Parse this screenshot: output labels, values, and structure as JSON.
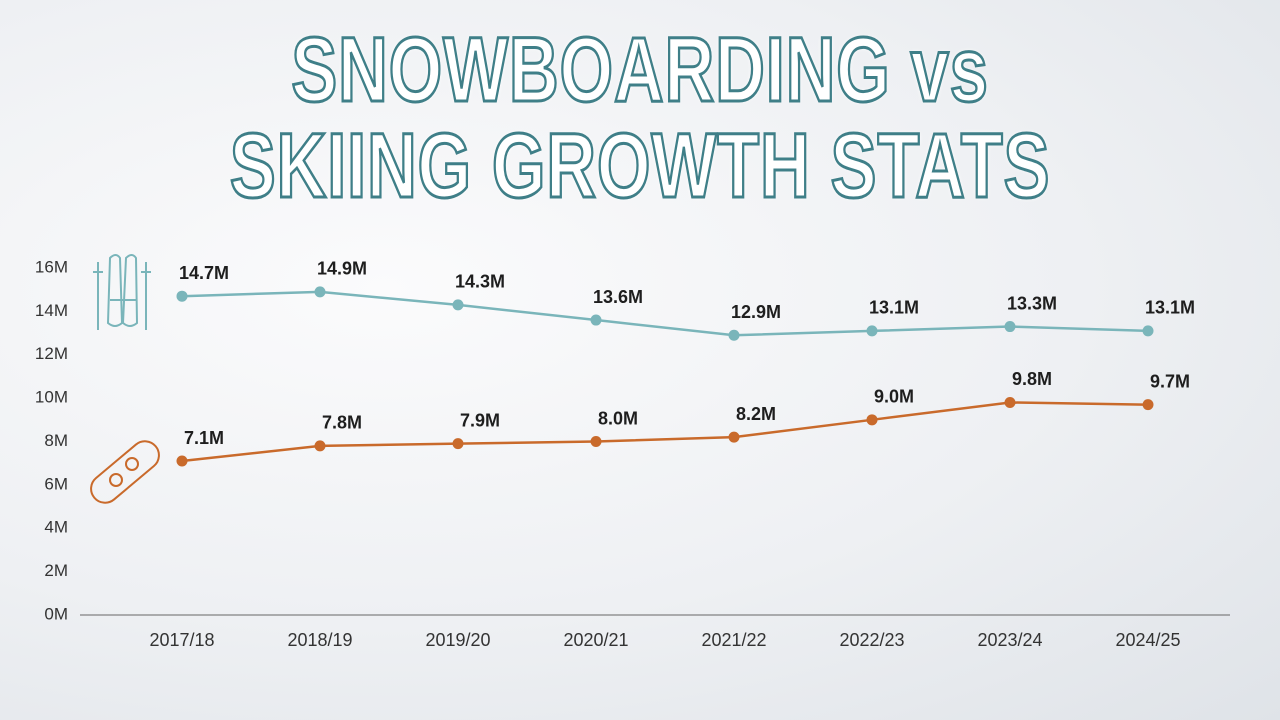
{
  "chart_data": {
    "type": "line",
    "title": "SNOWBOARDING vs SKIING GROWTH STATS",
    "categories": [
      "2017/18",
      "2018/19",
      "2019/20",
      "2020/21",
      "2021/22",
      "2022/23",
      "2023/24",
      "2024/25"
    ],
    "series": [
      {
        "color": "#7ab5ba",
        "values": [
          14.7,
          14.9,
          14.3,
          13.6,
          12.9,
          13.1,
          13.3,
          13.1
        ],
        "value_labels": [
          "14.7M",
          "14.9M",
          "14.3M",
          "13.6M",
          "12.9M",
          "13.1M",
          "13.3M",
          "13.1M"
        ]
      },
      {
        "color": "#c96a2b",
        "values": [
          7.1,
          7.8,
          7.9,
          8.0,
          8.2,
          9.0,
          9.8,
          9.7
        ],
        "value_labels": [
          "7.1M",
          "7.8M",
          "7.9M",
          "8.0M",
          "8.2M",
          "9.0M",
          "9.8M",
          "9.7M"
        ]
      }
    ],
    "ylim": [
      0,
      16
    ],
    "yticks": [
      {
        "value": 0,
        "label": "0M"
      },
      {
        "value": 2,
        "label": "2M"
      },
      {
        "value": 4,
        "label": "4M"
      },
      {
        "value": 6,
        "label": "6M"
      },
      {
        "value": 8,
        "label": "8M"
      },
      {
        "value": 10,
        "label": "10M"
      },
      {
        "value": 12,
        "label": "12M"
      },
      {
        "value": 14,
        "label": "14M"
      },
      {
        "value": 16,
        "label": "16M"
      }
    ]
  }
}
